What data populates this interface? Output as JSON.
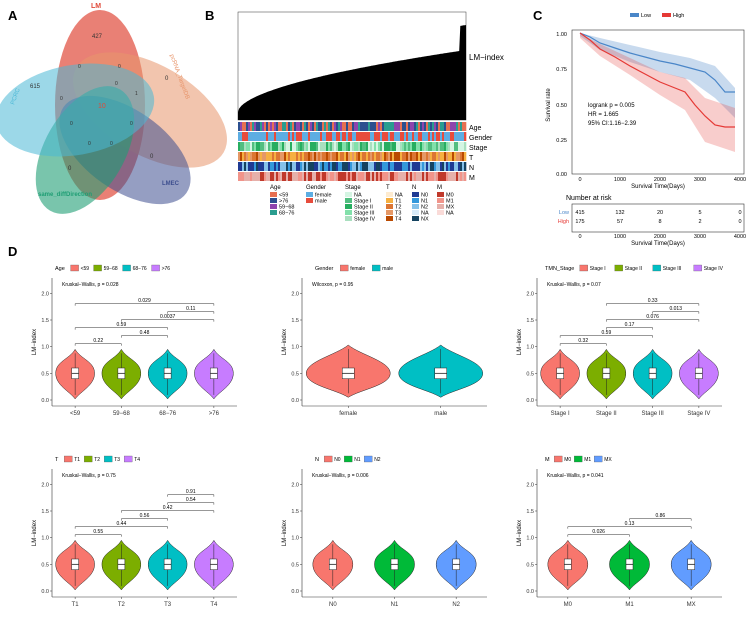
{
  "panels": {
    "a": "A",
    "b": "B",
    "c": "C",
    "d": "D"
  },
  "venn": {
    "sets": [
      {
        "name": "LM",
        "color": "#e04a3a"
      },
      {
        "name": "pcRNA_TargetDB",
        "color": "#e8956b"
      },
      {
        "name": "LMEC",
        "color": "#3e4f8f"
      },
      {
        "name": "same_diffDirection",
        "color": "#1f9e74"
      },
      {
        "name": "PCRC",
        "color": "#4ab8d6"
      }
    ],
    "counts": [
      "427",
      "0",
      "0",
      "0",
      "615",
      "10",
      "0",
      "0",
      "1",
      "0",
      "0",
      "0",
      "0",
      "0",
      "0",
      "0",
      "0",
      "0",
      "0",
      "0",
      "0",
      "0",
      "0",
      "0",
      "0",
      "0",
      "0",
      "0",
      "0",
      "0",
      "0"
    ]
  },
  "heatmap": {
    "index_label": "LM−index",
    "rows": [
      "Age",
      "Gender",
      "Stage",
      "T",
      "N",
      "M"
    ],
    "legend": [
      {
        "title": "Age",
        "items": [
          {
            "l": "<59",
            "c": "#e76f51"
          },
          {
            "l": ">76",
            "c": "#2c4f8f"
          },
          {
            "l": "59−68",
            "c": "#8e44ad"
          },
          {
            "l": "68−76",
            "c": "#2a9d8f"
          }
        ]
      },
      {
        "title": "Gender",
        "items": [
          {
            "l": "female",
            "c": "#5dade2"
          },
          {
            "l": "male",
            "c": "#e74c3c"
          }
        ]
      },
      {
        "title": "Stage",
        "items": [
          {
            "l": "NA",
            "c": "#d5f5e3"
          },
          {
            "l": "Stage I",
            "c": "#52be80"
          },
          {
            "l": "Stage II",
            "c": "#27ae60"
          },
          {
            "l": "Stage III",
            "c": "#82e0aa"
          },
          {
            "l": "Stage IV",
            "c": "#a9dfbf"
          }
        ]
      },
      {
        "title": "T",
        "items": [
          {
            "l": "NA",
            "c": "#fdebd0"
          },
          {
            "l": "T1",
            "c": "#f5b041"
          },
          {
            "l": "T2",
            "c": "#dc7633"
          },
          {
            "l": "T3",
            "c": "#e59866"
          },
          {
            "l": "T4",
            "c": "#ba4a00"
          }
        ]
      },
      {
        "title": "N",
        "items": [
          {
            "l": "N0",
            "c": "#1f3a93"
          },
          {
            "l": "N1",
            "c": "#3498db"
          },
          {
            "l": "N2",
            "c": "#85c1e9"
          },
          {
            "l": "NA",
            "c": "#d6eaf8"
          },
          {
            "l": "NX",
            "c": "#154360"
          }
        ]
      },
      {
        "title": "M",
        "items": [
          {
            "l": "M0",
            "c": "#c0392b"
          },
          {
            "l": "M1",
            "c": "#f1948a"
          },
          {
            "l": "MX",
            "c": "#e6b0aa"
          },
          {
            "l": "NA",
            "c": "#fadbd8"
          }
        ]
      }
    ]
  },
  "km": {
    "legend": [
      "Low",
      "High"
    ],
    "ylabel": "Survival rate",
    "xlabel": "Survival Time(Days)",
    "yticks": [
      "0.00",
      "0.25",
      "0.50",
      "0.75",
      "1.00"
    ],
    "xticks": [
      "0",
      "1000",
      "2000",
      "3000",
      "4000"
    ],
    "stats": [
      "logrank p = 0.005",
      "HR = 1.665",
      "95% CI:1.16−2.39"
    ],
    "risk_title": "Number at risk",
    "risk": [
      {
        "label": "Low",
        "vals": [
          "415",
          "132",
          "20",
          "5",
          "0"
        ]
      },
      {
        "label": "High",
        "vals": [
          "175",
          "57",
          "8",
          "2",
          "0"
        ]
      }
    ]
  },
  "violins": [
    {
      "legend_title": "Age",
      "groups": [
        "<59",
        "59−68",
        "68−76",
        ">76"
      ],
      "test": "Kruskal−Wallis, p = 0.028",
      "pvals": [
        "0.22",
        "0.48",
        "0.59",
        "0.0037",
        "0.11",
        "0.029"
      ],
      "ylabel": "LM−index"
    },
    {
      "legend_title": "Gender",
      "groups": [
        "female",
        "male"
      ],
      "test": "Wilcoxon, p = 0.95",
      "pvals": [],
      "ylabel": "LM−index"
    },
    {
      "legend_title": "TMN_Stage",
      "groups": [
        "Stage I",
        "Stage II",
        "Stage III",
        "Stage IV"
      ],
      "test": "Kruskal−Wallis, p = 0.07",
      "pvals": [
        "0.32",
        "0.59",
        "0.17",
        "0.076",
        "0.013",
        "0.33"
      ],
      "ylabel": "LM−index"
    },
    {
      "legend_title": "T",
      "groups": [
        "T1",
        "T2",
        "T3",
        "T4"
      ],
      "test": "Kruskal−Wallis, p = 0.75",
      "pvals": [
        "0.55",
        "0.44",
        "0.56",
        "0.42",
        "0.54",
        "0.91"
      ],
      "ylabel": "LM−index"
    },
    {
      "legend_title": "N",
      "groups": [
        "N0",
        "N1",
        "N2"
      ],
      "test": "Kruskal−Wallis, p = 0.006",
      "pvals": [],
      "ylabel": "LM−index"
    },
    {
      "legend_title": "M",
      "groups": [
        "M0",
        "M1",
        "MX"
      ],
      "test": "Kruskal−Wallis, p = 0.041",
      "pvals": [
        "0.026",
        "0.13",
        "0.86"
      ],
      "ylabel": "LM−index"
    }
  ],
  "yticks_violin": [
    "0.0",
    "0.5",
    "1.0",
    "1.5",
    "2.0"
  ],
  "colors": {
    "red": "#f8766d",
    "green": "#7cae00",
    "cyan": "#00bfc4",
    "purple": "#c77cff",
    "teal": "#00ba38",
    "blue": "#619cff"
  }
}
